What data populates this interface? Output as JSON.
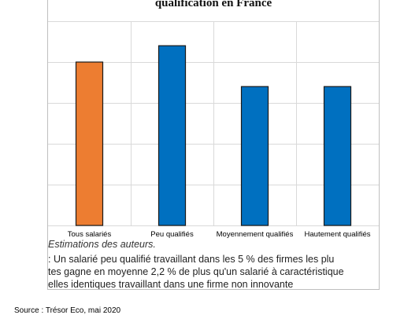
{
  "chart_data": {
    "type": "bar",
    "title": "qualification en France",
    "categories": [
      "Tous salariés",
      "Peu qualifiés",
      "Moyennement qualifiés",
      "Hautement qualifiés"
    ],
    "values": [
      2.0,
      2.2,
      1.7,
      1.7
    ],
    "bar_colors": [
      "#ED7D31",
      "#0070C0",
      "#0070C0",
      "#0070C0"
    ],
    "ylim": [
      0,
      2.5
    ],
    "grid": true
  },
  "note": "Estimations des auteurs.",
  "body_lines": [
    ": Un salarié peu qualifié travaillant dans les 5 % des firmes les plu",
    "tes gagne en moyenne 2,2 % de plus qu'un salarié à caractéristique",
    "elles identiques travaillant dans une firme non innovante"
  ],
  "source": "Source : Trésor Eco, mai 2020"
}
